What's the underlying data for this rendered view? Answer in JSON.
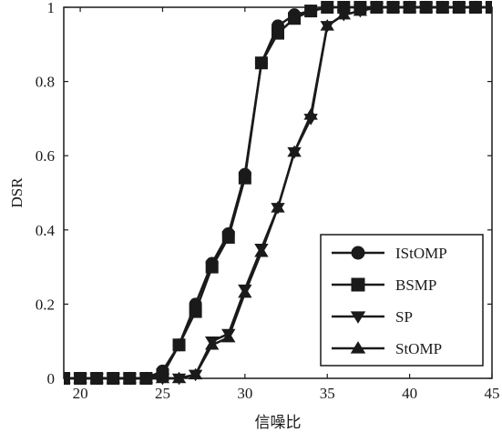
{
  "chart_data": {
    "type": "line",
    "title": "",
    "xlabel": "信噪比",
    "ylabel": "DSR",
    "xlim": [
      19,
      45
    ],
    "ylim": [
      0,
      1
    ],
    "xticks": [
      "20",
      "25",
      "30",
      "35",
      "40",
      "45"
    ],
    "yticks": [
      "0",
      "0.2",
      "0.4",
      "0.6",
      "0.8",
      "1"
    ],
    "grid": false,
    "legend_position": "lower-right",
    "line_color": "#1a1a1a",
    "series": [
      {
        "name": "IStOMP",
        "marker": "circle",
        "x": [
          19,
          20,
          21,
          22,
          23,
          24,
          25,
          26,
          27,
          28,
          29,
          30,
          31,
          32,
          33,
          34,
          35,
          36,
          37,
          38,
          39,
          40,
          41,
          42,
          43,
          44,
          45
        ],
        "y": [
          0,
          0,
          0,
          0,
          0,
          0,
          0.02,
          0.09,
          0.2,
          0.31,
          0.39,
          0.55,
          0.85,
          0.95,
          0.98,
          0.99,
          1,
          1,
          1,
          1,
          1,
          1,
          1,
          1,
          1,
          1,
          1
        ]
      },
      {
        "name": "BSMP",
        "marker": "square",
        "x": [
          19,
          20,
          21,
          22,
          23,
          24,
          25,
          26,
          27,
          28,
          29,
          30,
          31,
          32,
          33,
          34,
          35,
          36,
          37,
          38,
          39,
          40,
          41,
          42,
          43,
          44,
          45
        ],
        "y": [
          0,
          0,
          0,
          0,
          0,
          0,
          0.01,
          0.09,
          0.18,
          0.3,
          0.38,
          0.54,
          0.85,
          0.93,
          0.97,
          0.99,
          1,
          1,
          1,
          1,
          1,
          1,
          1,
          1,
          1,
          1,
          1
        ]
      },
      {
        "name": "SP",
        "marker": "triangle-down",
        "x": [
          19,
          20,
          21,
          22,
          23,
          24,
          25,
          26,
          27,
          28,
          29,
          30,
          31,
          32,
          33,
          34,
          35,
          36,
          37,
          38,
          39,
          40,
          41,
          42,
          43,
          44,
          45
        ],
        "y": [
          0,
          0,
          0,
          0,
          0,
          0,
          0,
          0,
          0.01,
          0.1,
          0.12,
          0.24,
          0.35,
          0.46,
          0.61,
          0.7,
          0.95,
          0.98,
          0.99,
          1,
          1,
          1,
          1,
          1,
          1,
          1,
          1
        ]
      },
      {
        "name": "StOMP",
        "marker": "triangle-up",
        "x": [
          19,
          20,
          21,
          22,
          23,
          24,
          25,
          26,
          27,
          28,
          29,
          30,
          31,
          32,
          33,
          34,
          35,
          36,
          37,
          38,
          39,
          40,
          41,
          42,
          43,
          44,
          45
        ],
        "y": [
          0,
          0,
          0,
          0,
          0,
          0,
          0,
          0,
          0.01,
          0.09,
          0.11,
          0.23,
          0.34,
          0.46,
          0.61,
          0.71,
          0.95,
          0.98,
          0.99,
          1,
          1,
          1,
          1,
          1,
          1,
          1,
          1
        ]
      }
    ]
  }
}
